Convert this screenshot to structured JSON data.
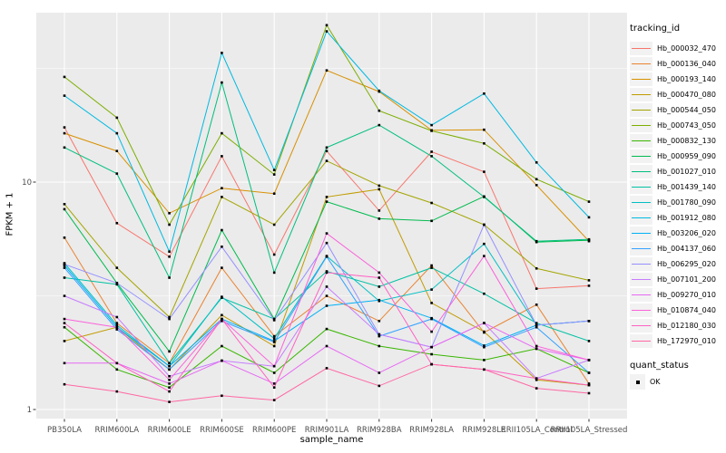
{
  "legend": {
    "tracking_title": "tracking_id",
    "quant_title": "quant_status",
    "quant_items": [
      {
        "label": "OK",
        "marker": "black-square"
      }
    ]
  },
  "chart_data": {
    "type": "line",
    "title": "",
    "xlabel": "sample_name",
    "ylabel": "FPKM + 1",
    "y_scale": "log10",
    "ylim": [
      1,
      55
    ],
    "grid": true,
    "legend_position": "right",
    "panel_background": "#EBEBEB",
    "grid_color": "#FFFFFF",
    "axis_text_color": "#4D4D4D",
    "point_color": "#000000",
    "y_ticks": [
      {
        "v": 1,
        "label": "1"
      },
      {
        "v": 10,
        "label": "10"
      }
    ],
    "y_minor_breaks": [
      3.162,
      31.623
    ],
    "categories": [
      "PB350LA",
      "RRIM600LA",
      "RRIM600LE",
      "RRIM600SE",
      "RRIM600PE",
      "RRIM901LA",
      "RRIM928BA",
      "RRIM928LA",
      "RRIM928LE",
      "RRII105LA_Control",
      "RRII105LA_Stressed"
    ],
    "series": [
      {
        "name": "Hb_000032_470",
        "color": "#F8766D",
        "values": [
          17.4,
          6.6,
          4.7,
          13.0,
          4.8,
          13.7,
          7.5,
          13.6,
          11.1,
          3.4,
          3.5
        ]
      },
      {
        "name": "Hb_000136_040",
        "color": "#EA8331",
        "values": [
          5.7,
          2.4,
          1.6,
          4.2,
          2.1,
          3.16,
          2.45,
          4.3,
          2.18,
          2.89,
          1.3
        ]
      },
      {
        "name": "Hb_000193_140",
        "color": "#D89000",
        "values": [
          16.4,
          13.7,
          7.3,
          9.4,
          8.9,
          31.0,
          25.0,
          16.9,
          17.0,
          9.7,
          5.5
        ]
      },
      {
        "name": "Hb_000470_080",
        "color": "#C09B00",
        "values": [
          2.0,
          2.3,
          1.5,
          2.6,
          1.9,
          8.6,
          9.3,
          2.94,
          2.2,
          1.35,
          1.28
        ]
      },
      {
        "name": "Hb_000544_050",
        "color": "#A3A500",
        "values": [
          8.0,
          4.2,
          2.55,
          8.6,
          6.5,
          12.4,
          9.65,
          8.1,
          6.5,
          4.17,
          3.7
        ]
      },
      {
        "name": "Hb_000743_050",
        "color": "#7CAE00",
        "values": [
          29.0,
          19.2,
          6.5,
          16.4,
          10.8,
          49.0,
          20.6,
          16.8,
          14.8,
          10.3,
          8.2
        ]
      },
      {
        "name": "Hb_000832_130",
        "color": "#39B600",
        "values": [
          2.3,
          1.5,
          1.25,
          1.9,
          1.45,
          2.26,
          1.9,
          1.75,
          1.65,
          1.85,
          1.45
        ]
      },
      {
        "name": "Hb_000959_090",
        "color": "#00BB4E",
        "values": [
          7.6,
          3.6,
          1.8,
          6.15,
          2.5,
          8.2,
          6.9,
          6.75,
          8.65,
          5.45,
          5.55
        ]
      },
      {
        "name": "Hb_001027_010",
        "color": "#00BF7D",
        "values": [
          14.2,
          10.9,
          3.8,
          27.4,
          4.0,
          14.2,
          17.8,
          13.0,
          8.6,
          5.5,
          5.6
        ]
      },
      {
        "name": "Hb_001439_140",
        "color": "#00C1A3",
        "values": [
          3.8,
          3.55,
          1.6,
          3.1,
          2.5,
          4.05,
          3.47,
          4.2,
          3.23,
          2.4,
          2.0
        ]
      },
      {
        "name": "Hb_001780_090",
        "color": "#00BFC4",
        "values": [
          4.4,
          2.35,
          1.55,
          3.13,
          2.05,
          4.73,
          3.0,
          3.37,
          5.35,
          2.35,
          2.45
        ]
      },
      {
        "name": "Hb_001912_080",
        "color": "#00BAE0",
        "values": [
          24.0,
          16.4,
          4.95,
          37.0,
          11.3,
          46.0,
          25.2,
          17.8,
          24.5,
          12.2,
          7.0
        ]
      },
      {
        "name": "Hb_003206_020",
        "color": "#00B0F6",
        "values": [
          4.3,
          2.3,
          1.55,
          2.5,
          2.0,
          2.86,
          3.03,
          2.52,
          1.91,
          2.35,
          2.45
        ]
      },
      {
        "name": "Hb_004137_060",
        "color": "#35A2FF",
        "values": [
          4.2,
          2.25,
          1.5,
          2.45,
          1.98,
          4.7,
          2.1,
          2.5,
          1.88,
          2.3,
          1.45
        ]
      },
      {
        "name": "Hb_006295_020",
        "color": "#9590FF",
        "values": [
          4.35,
          3.6,
          2.5,
          5.2,
          2.47,
          5.4,
          2.14,
          1.88,
          6.5,
          2.35,
          2.45
        ]
      },
      {
        "name": "Hb_007101_200",
        "color": "#C77CFF",
        "values": [
          3.16,
          2.55,
          1.4,
          1.64,
          1.55,
          3.47,
          2.14,
          1.88,
          2.4,
          1.37,
          1.65
        ]
      },
      {
        "name": "Hb_009270_010",
        "color": "#E76BF3",
        "values": [
          1.6,
          1.6,
          1.3,
          1.64,
          1.3,
          1.9,
          1.45,
          1.88,
          2.4,
          1.85,
          1.65
        ]
      },
      {
        "name": "Hb_010874_040",
        "color": "#FA62DB",
        "values": [
          2.5,
          2.3,
          1.35,
          2.5,
          1.55,
          5.95,
          4.0,
          2.2,
          4.73,
          1.9,
          1.65
        ]
      },
      {
        "name": "Hb_012180_030",
        "color": "#FF61C3",
        "values": [
          2.4,
          1.6,
          1.2,
          2.5,
          1.25,
          4.0,
          3.8,
          1.58,
          1.5,
          1.37,
          1.28
        ]
      },
      {
        "name": "Hb_172970_010",
        "color": "#FF67A4",
        "values": [
          1.29,
          1.2,
          1.08,
          1.15,
          1.1,
          1.52,
          1.27,
          1.58,
          1.5,
          1.24,
          1.18
        ]
      }
    ]
  }
}
